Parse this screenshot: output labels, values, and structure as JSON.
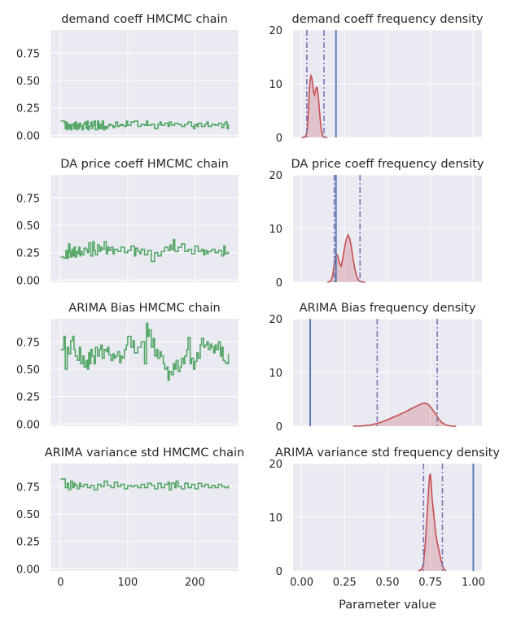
{
  "colors": {
    "panel_bg": "#eaeaf2",
    "grid": "#ffffff",
    "chain": "#55a868",
    "kde_line": "#c44e52",
    "kde_fill": "#c44e52",
    "true_value_line": "#4c72b0",
    "interval_line": "#8172b2",
    "text": "#262626"
  },
  "shared_x_label": "Parameter value",
  "chart_data": [
    {
      "type": "line",
      "title": "demand coeff HMCMC chain",
      "xlim": [
        -15,
        265
      ],
      "ylim": [
        -0.02,
        0.96
      ],
      "x_ticks": [
        0,
        100,
        200
      ],
      "x_tick_labels": [
        "",
        "",
        ""
      ],
      "y_ticks": [
        0,
        0.25,
        0.5,
        0.75
      ],
      "y_tick_labels": [
        "0.00",
        "0.25",
        "0.50",
        "0.75"
      ],
      "grid": true,
      "series": [
        {
          "x": [
            0,
            3,
            6,
            7,
            8,
            10,
            11,
            12,
            13,
            15,
            17,
            19,
            20,
            22,
            24,
            25,
            27,
            28,
            30,
            32,
            34,
            36,
            38,
            40,
            41,
            43,
            45,
            47,
            48,
            50,
            52,
            55,
            57,
            58,
            60,
            62,
            64,
            66,
            68,
            70,
            72,
            75,
            78,
            80,
            82,
            85,
            88,
            90,
            92,
            95,
            98,
            100,
            105,
            110,
            115,
            120,
            125,
            128,
            130,
            135,
            140,
            145,
            148,
            150,
            155,
            160,
            162,
            165,
            170,
            175,
            180,
            185,
            190,
            195,
            198,
            200,
            203,
            205,
            210,
            215,
            218,
            220,
            225,
            230,
            235,
            240,
            243,
            245,
            248,
            250
          ],
          "y": [
            0.13,
            0.13,
            0.11,
            0.06,
            0.12,
            0.05,
            0.1,
            0.06,
            0.1,
            0.05,
            0.09,
            0.11,
            0.06,
            0.12,
            0.05,
            0.1,
            0.06,
            0.11,
            0.08,
            0.05,
            0.1,
            0.12,
            0.06,
            0.13,
            0.05,
            0.08,
            0.12,
            0.06,
            0.09,
            0.13,
            0.05,
            0.13,
            0.06,
            0.1,
            0.06,
            0.13,
            0.05,
            0.08,
            0.06,
            0.08,
            0.1,
            0.09,
            0.07,
            0.08,
            0.12,
            0.08,
            0.09,
            0.1,
            0.09,
            0.08,
            0.13,
            0.09,
            0.12,
            0.13,
            0.08,
            0.1,
            0.09,
            0.13,
            0.09,
            0.1,
            0.06,
            0.1,
            0.12,
            0.09,
            0.11,
            0.08,
            0.12,
            0.09,
            0.11,
            0.1,
            0.08,
            0.1,
            0.12,
            0.08,
            0.06,
            0.1,
            0.08,
            0.11,
            0.08,
            0.1,
            0.12,
            0.08,
            0.1,
            0.09,
            0.11,
            0.07,
            0.1,
            0.12,
            0.06,
            0.1
          ]
        }
      ]
    },
    {
      "type": "area",
      "title": "demand coeff frequency density",
      "xlim": [
        -0.05,
        1.05
      ],
      "ylim": [
        0,
        20
      ],
      "x_ticks": [
        0,
        0.25,
        0.5,
        0.75,
        1.0
      ],
      "x_tick_labels": [
        "",
        "",
        "",
        "",
        ""
      ],
      "y_ticks": [
        0,
        10,
        20
      ],
      "y_tick_labels": [
        "0",
        "10",
        "20"
      ],
      "grid": true,
      "kde": {
        "x": [
          0.0,
          0.01,
          0.02,
          0.03,
          0.035,
          0.04,
          0.045,
          0.05,
          0.055,
          0.06,
          0.065,
          0.07,
          0.075,
          0.08,
          0.085,
          0.09,
          0.095,
          0.1,
          0.105,
          0.11,
          0.115,
          0.12,
          0.125,
          0.13,
          0.135,
          0.14,
          0.15
        ],
        "y": [
          0,
          0,
          0.1,
          0.8,
          2.5,
          5.5,
          8.8,
          10.8,
          11.5,
          11,
          9.8,
          8.3,
          7.9,
          8.6,
          9.3,
          9.3,
          8.4,
          6.6,
          4.6,
          2.7,
          1.4,
          0.6,
          0.2,
          0.05,
          0,
          0,
          0
        ]
      },
      "true_value": 0.2,
      "interval": [
        0.03,
        0.13
      ]
    },
    {
      "type": "line",
      "title": "DA price coeff HMCMC chain",
      "xlim": [
        -15,
        265
      ],
      "ylim": [
        -0.02,
        0.96
      ],
      "x_ticks": [
        0,
        100,
        200
      ],
      "x_tick_labels": [
        "",
        "",
        ""
      ],
      "y_ticks": [
        0,
        0.25,
        0.5,
        0.75
      ],
      "y_tick_labels": [
        "0.00",
        "0.25",
        "0.50",
        "0.75"
      ],
      "grid": true,
      "series": [
        {
          "x": [
            0,
            5,
            8,
            10,
            12,
            14,
            15,
            17,
            19,
            20,
            22,
            24,
            25,
            27,
            29,
            30,
            32,
            35,
            38,
            40,
            42,
            45,
            48,
            50,
            52,
            55,
            58,
            60,
            62,
            65,
            68,
            70,
            72,
            75,
            78,
            80,
            85,
            90,
            95,
            100,
            105,
            110,
            112,
            115,
            118,
            120,
            125,
            130,
            135,
            140,
            145,
            150,
            155,
            160,
            163,
            165,
            168,
            170,
            175,
            180,
            185,
            190,
            195,
            200,
            205,
            210,
            213,
            215,
            218,
            220,
            225,
            230,
            235,
            240,
            243,
            245,
            248,
            250
          ],
          "y": [
            0.21,
            0.2,
            0.27,
            0.2,
            0.33,
            0.25,
            0.21,
            0.28,
            0.22,
            0.3,
            0.21,
            0.26,
            0.24,
            0.3,
            0.22,
            0.26,
            0.23,
            0.29,
            0.28,
            0.25,
            0.34,
            0.22,
            0.35,
            0.27,
            0.23,
            0.32,
            0.26,
            0.3,
            0.28,
            0.35,
            0.24,
            0.3,
            0.27,
            0.3,
            0.24,
            0.28,
            0.26,
            0.3,
            0.25,
            0.27,
            0.31,
            0.22,
            0.29,
            0.26,
            0.24,
            0.28,
            0.23,
            0.27,
            0.17,
            0.25,
            0.22,
            0.26,
            0.3,
            0.27,
            0.32,
            0.28,
            0.37,
            0.26,
            0.3,
            0.33,
            0.26,
            0.28,
            0.24,
            0.31,
            0.26,
            0.28,
            0.23,
            0.27,
            0.24,
            0.26,
            0.28,
            0.25,
            0.27,
            0.22,
            0.31,
            0.24,
            0.25,
            0.24
          ]
        }
      ]
    },
    {
      "type": "area",
      "title": "DA price coeff frequency density",
      "xlim": [
        -0.05,
        1.05
      ],
      "ylim": [
        0,
        20
      ],
      "x_ticks": [
        0,
        0.25,
        0.5,
        0.75,
        1.0
      ],
      "x_tick_labels": [
        "",
        "",
        "",
        "",
        ""
      ],
      "y_ticks": [
        0,
        10,
        20
      ],
      "y_tick_labels": [
        "0",
        "10",
        "20"
      ],
      "grid": true,
      "kde": {
        "x": [
          0.15,
          0.17,
          0.18,
          0.19,
          0.2,
          0.21,
          0.22,
          0.23,
          0.24,
          0.25,
          0.26,
          0.27,
          0.28,
          0.29,
          0.3,
          0.31,
          0.32,
          0.33,
          0.34,
          0.35,
          0.37
        ],
        "y": [
          0,
          0.2,
          1.2,
          3.2,
          5.2,
          5,
          3.5,
          3,
          4.5,
          6.5,
          8,
          8.8,
          8.2,
          6.5,
          4.3,
          2.5,
          1.2,
          0.5,
          0.2,
          0.05,
          0
        ]
      },
      "true_value": 0.2,
      "interval": [
        0.19,
        0.34
      ]
    },
    {
      "type": "line",
      "title": "ARIMA Bias HMCMC chain",
      "xlim": [
        -15,
        265
      ],
      "ylim": [
        -0.02,
        0.96
      ],
      "x_ticks": [
        0,
        100,
        200
      ],
      "x_tick_labels": [
        "",
        "",
        ""
      ],
      "y_ticks": [
        0,
        0.25,
        0.5,
        0.75
      ],
      "y_tick_labels": [
        "0.00",
        "0.25",
        "0.50",
        "0.75"
      ],
      "grid": true,
      "series": [
        {
          "x": [
            0,
            5,
            7,
            10,
            12,
            15,
            18,
            20,
            22,
            25,
            28,
            30,
            33,
            35,
            38,
            40,
            42,
            44,
            45,
            47,
            50,
            52,
            55,
            58,
            60,
            62,
            65,
            68,
            70,
            72,
            75,
            78,
            80,
            82,
            85,
            88,
            90,
            92,
            95,
            98,
            100,
            105,
            108,
            110,
            115,
            120,
            125,
            128,
            130,
            132,
            135,
            138,
            140,
            143,
            145,
            148,
            150,
            153,
            155,
            158,
            160,
            162,
            165,
            168,
            170,
            172,
            175,
            178,
            180,
            183,
            185,
            188,
            190,
            193,
            195,
            198,
            200,
            203,
            205,
            208,
            210,
            213,
            215,
            218,
            220,
            223,
            225,
            228,
            230,
            232,
            235,
            238,
            240,
            242,
            245,
            248,
            250
          ],
          "y": [
            0.68,
            0.8,
            0.5,
            0.7,
            0.64,
            0.76,
            0.8,
            0.68,
            0.62,
            0.58,
            0.7,
            0.55,
            0.62,
            0.52,
            0.58,
            0.5,
            0.65,
            0.55,
            0.68,
            0.62,
            0.55,
            0.7,
            0.62,
            0.68,
            0.72,
            0.6,
            0.68,
            0.66,
            0.7,
            0.63,
            0.58,
            0.64,
            0.6,
            0.62,
            0.66,
            0.56,
            0.62,
            0.6,
            0.68,
            0.72,
            0.8,
            0.7,
            0.76,
            0.65,
            0.7,
            0.75,
            0.55,
            0.92,
            0.8,
            0.86,
            0.7,
            0.78,
            0.62,
            0.68,
            0.6,
            0.66,
            0.62,
            0.55,
            0.5,
            0.52,
            0.4,
            0.48,
            0.45,
            0.55,
            0.5,
            0.58,
            0.48,
            0.52,
            0.6,
            0.55,
            0.62,
            0.68,
            0.79,
            0.55,
            0.6,
            0.5,
            0.57,
            0.65,
            0.6,
            0.72,
            0.78,
            0.7,
            0.72,
            0.75,
            0.68,
            0.73,
            0.7,
            0.65,
            0.72,
            0.68,
            0.75,
            0.62,
            0.7,
            0.58,
            0.56,
            0.55,
            0.64
          ]
        }
      ]
    },
    {
      "type": "area",
      "title": "ARIMA Bias frequency density",
      "xlim": [
        -0.05,
        1.05
      ],
      "ylim": [
        0,
        20
      ],
      "x_ticks": [
        0,
        0.25,
        0.5,
        0.75,
        1.0
      ],
      "x_tick_labels": [
        "",
        "",
        "",
        "",
        ""
      ],
      "y_ticks": [
        0,
        10,
        20
      ],
      "y_tick_labels": [
        "0",
        "10",
        "20"
      ],
      "grid": true,
      "kde": {
        "x": [
          0.3,
          0.35,
          0.4,
          0.45,
          0.5,
          0.55,
          0.6,
          0.63,
          0.66,
          0.68,
          0.7,
          0.72,
          0.74,
          0.76,
          0.78,
          0.8,
          0.82,
          0.84,
          0.86,
          0.88,
          0.9
        ],
        "y": [
          0,
          0.05,
          0.2,
          0.6,
          1.2,
          1.9,
          2.6,
          3.1,
          3.6,
          3.9,
          4.2,
          4.3,
          4,
          3.2,
          2.3,
          1.3,
          0.6,
          0.25,
          0.08,
          0.02,
          0
        ]
      },
      "true_value": 0.05,
      "interval": [
        0.44,
        0.79
      ]
    },
    {
      "type": "line",
      "title": "ARIMA variance std HMCMC chain",
      "xlim": [
        -15,
        265
      ],
      "ylim": [
        -0.02,
        0.96
      ],
      "x_ticks": [
        0,
        100,
        200
      ],
      "x_tick_labels": [
        "0",
        "100",
        "200"
      ],
      "y_ticks": [
        0,
        0.25,
        0.5,
        0.75
      ],
      "y_tick_labels": [
        "0.00",
        "0.25",
        "0.50",
        "0.75"
      ],
      "grid": true,
      "series": [
        {
          "x": [
            0,
            5,
            7,
            10,
            12,
            15,
            18,
            20,
            22,
            25,
            28,
            30,
            35,
            40,
            45,
            50,
            55,
            60,
            65,
            70,
            75,
            80,
            85,
            90,
            95,
            100,
            105,
            110,
            115,
            120,
            125,
            130,
            135,
            140,
            145,
            150,
            155,
            160,
            162,
            165,
            170,
            172,
            175,
            180,
            185,
            190,
            195,
            200,
            205,
            210,
            215,
            220,
            225,
            230,
            235,
            240,
            245,
            250
          ],
          "y": [
            0.82,
            0.82,
            0.74,
            0.78,
            0.72,
            0.8,
            0.74,
            0.78,
            0.76,
            0.73,
            0.78,
            0.75,
            0.77,
            0.74,
            0.76,
            0.72,
            0.77,
            0.75,
            0.8,
            0.76,
            0.74,
            0.79,
            0.75,
            0.77,
            0.73,
            0.76,
            0.75,
            0.76,
            0.74,
            0.77,
            0.74,
            0.78,
            0.76,
            0.73,
            0.78,
            0.74,
            0.77,
            0.79,
            0.72,
            0.78,
            0.74,
            0.8,
            0.75,
            0.73,
            0.78,
            0.74,
            0.77,
            0.73,
            0.78,
            0.75,
            0.77,
            0.74,
            0.76,
            0.74,
            0.77,
            0.75,
            0.74,
            0.76
          ]
        }
      ]
    },
    {
      "type": "area",
      "title": "ARIMA variance std frequency density",
      "xlim": [
        -0.05,
        1.05
      ],
      "ylim": [
        0,
        20
      ],
      "x_ticks": [
        0,
        0.25,
        0.5,
        0.75,
        1.0
      ],
      "x_tick_labels": [
        "0.00",
        "0.25",
        "0.50",
        "0.75",
        "1.00"
      ],
      "y_ticks": [
        0,
        10,
        20
      ],
      "y_tick_labels": [
        "0",
        "10",
        "20"
      ],
      "grid": true,
      "kde": {
        "x": [
          0.68,
          0.7,
          0.71,
          0.72,
          0.73,
          0.74,
          0.745,
          0.75,
          0.755,
          0.76,
          0.77,
          0.78,
          0.79,
          0.8,
          0.81,
          0.82,
          0.83,
          0.84
        ],
        "y": [
          0,
          0.3,
          1.5,
          5,
          10,
          15.5,
          17.8,
          18,
          16,
          13.5,
          10.5,
          7.2,
          5.2,
          3.8,
          2.2,
          1,
          0.3,
          0
        ]
      },
      "true_value": 1.0,
      "interval": [
        0.71,
        0.82
      ]
    }
  ]
}
